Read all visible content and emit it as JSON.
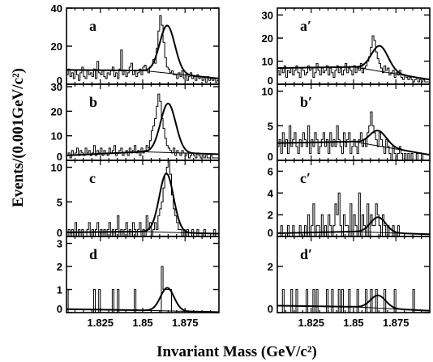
{
  "figure": {
    "ylabel": "Events/(0.001GeV/c²)",
    "xlabel": "Invariant Mass (GeV/c²)"
  },
  "chart_data": [
    {
      "type": "histogram",
      "label": "a",
      "xlim": [
        1.805,
        1.895
      ],
      "ylim": [
        0,
        40
      ],
      "yticks": [
        0,
        20,
        40
      ],
      "xticks": [
        1.825,
        1.85,
        1.875
      ],
      "bins_start": 1.805,
      "bin_width": 0.001,
      "values": [
        5,
        8,
        4,
        6,
        3,
        7,
        5,
        2,
        6,
        9,
        4,
        3,
        7,
        5,
        6,
        4,
        8,
        3,
        12,
        6,
        5,
        7,
        4,
        3,
        6,
        5,
        7,
        9,
        4,
        6,
        3,
        8,
        18,
        5,
        7,
        4,
        6,
        9,
        11,
        5,
        7,
        4,
        6,
        8,
        5,
        9,
        10,
        7,
        6,
        9,
        10,
        13,
        11,
        19,
        28,
        36,
        31,
        22,
        14,
        9,
        8,
        6,
        7,
        5,
        5,
        3,
        6,
        4,
        7,
        3,
        5,
        2,
        4,
        6,
        3,
        4,
        2,
        5,
        3,
        4,
        2,
        3,
        1,
        4,
        2,
        3,
        2,
        3,
        1,
        2
      ],
      "fit": {
        "bg_start": 7.5,
        "bg_mid": 7.2,
        "bg_end": 3.0,
        "peak": 1.8645,
        "sigma": 0.0045,
        "amp": 25
      }
    },
    {
      "type": "histogram",
      "label": "a′",
      "xlim": [
        1.805,
        1.895
      ],
      "ylim": [
        0,
        33
      ],
      "yticks": [
        0,
        10,
        20,
        30
      ],
      "xticks": [
        1.825,
        1.85,
        1.875
      ],
      "bins_start": 1.805,
      "bin_width": 0.001,
      "values": [
        6,
        4,
        7,
        5,
        8,
        3,
        6,
        5,
        7,
        4,
        6,
        8,
        5,
        3,
        7,
        6,
        4,
        5,
        8,
        6,
        7,
        3,
        5,
        9,
        6,
        4,
        7,
        5,
        6,
        8,
        4,
        7,
        5,
        3,
        6,
        8,
        5,
        7,
        4,
        6,
        9,
        5,
        7,
        6,
        4,
        8,
        5,
        7,
        6,
        9,
        5,
        7,
        8,
        10,
        12,
        16,
        21,
        19,
        14,
        11,
        9,
        7,
        5,
        8,
        6,
        7,
        4,
        5,
        6,
        3,
        5,
        4,
        6,
        3,
        2,
        4,
        3,
        2,
        3,
        2,
        1,
        2,
        3,
        1,
        2,
        1,
        2,
        1,
        1,
        1
      ],
      "fit": {
        "bg_start": 7.0,
        "bg_mid": 7.5,
        "bg_end": 2.0,
        "peak": 1.8655,
        "sigma": 0.005,
        "amp": 11
      }
    },
    {
      "type": "histogram",
      "label": "b",
      "xlim": [
        1.805,
        1.895
      ],
      "ylim": [
        0,
        31
      ],
      "yticks": [
        0,
        10,
        20,
        30
      ],
      "xticks": [
        1.825,
        1.85,
        1.875
      ],
      "bins_start": 1.805,
      "bin_width": 0.001,
      "values": [
        2,
        3,
        1,
        4,
        2,
        3,
        5,
        2,
        4,
        3,
        2,
        5,
        3,
        4,
        2,
        3,
        6,
        2,
        4,
        3,
        5,
        2,
        4,
        3,
        2,
        5,
        3,
        4,
        6,
        2,
        3,
        4,
        5,
        2,
        3,
        4,
        2,
        5,
        3,
        4,
        6,
        3,
        4,
        2,
        5,
        3,
        4,
        6,
        5,
        8,
        12,
        14,
        17,
        22,
        27,
        24,
        17,
        13,
        9,
        6,
        5,
        4,
        3,
        5,
        2,
        4,
        3,
        2,
        4,
        3,
        2,
        3,
        1,
        2,
        3,
        2,
        1,
        3,
        2,
        1,
        2,
        1,
        2,
        1,
        1,
        2,
        1,
        1,
        1,
        1
      ],
      "fit": {
        "bg_start": 2.0,
        "bg_mid": 3.5,
        "bg_end": 2.5,
        "peak": 1.865,
        "sigma": 0.0045,
        "amp": 20
      }
    },
    {
      "type": "histogram",
      "label": "b′",
      "xlim": [
        1.805,
        1.895
      ],
      "ylim": [
        0,
        11
      ],
      "yticks": [
        0,
        5,
        10
      ],
      "xticks": [
        1.825,
        1.85,
        1.875
      ],
      "bins_start": 1.805,
      "bin_width": 0.001,
      "values": [
        2,
        3,
        1,
        4,
        2,
        3,
        1,
        5,
        2,
        3,
        4,
        2,
        1,
        3,
        2,
        4,
        3,
        2,
        5,
        1,
        3,
        2,
        4,
        3,
        1,
        2,
        3,
        4,
        2,
        3,
        1,
        4,
        2,
        3,
        2,
        5,
        3,
        2,
        1,
        4,
        2,
        3,
        4,
        1,
        2,
        3,
        2,
        1,
        3,
        4,
        2,
        3,
        2,
        4,
        5,
        7,
        5,
        4,
        3,
        2,
        4,
        3,
        2,
        1,
        3,
        2,
        1,
        0,
        2,
        1,
        0,
        1,
        2,
        1,
        0,
        1,
        0,
        1,
        0,
        1,
        0,
        0,
        1,
        0,
        0,
        1,
        0,
        0,
        0,
        0
      ],
      "fit": {
        "bg_start": 2.5,
        "bg_mid": 2.7,
        "bg_end": 0.8,
        "peak": 1.8645,
        "sigma": 0.005,
        "amp": 2.2
      }
    },
    {
      "type": "histogram",
      "label": "c",
      "xlim": [
        1.805,
        1.895
      ],
      "ylim": [
        0,
        11
      ],
      "yticks": [
        0,
        5,
        10
      ],
      "xticks": [
        1.825,
        1.85,
        1.875
      ],
      "bins_start": 1.805,
      "bin_width": 0.001,
      "values": [
        0,
        1,
        0,
        1,
        0,
        2,
        0,
        1,
        0,
        1,
        0,
        0,
        1,
        2,
        0,
        1,
        0,
        1,
        2,
        0,
        1,
        0,
        1,
        0,
        1,
        2,
        0,
        1,
        0,
        1,
        3,
        0,
        1,
        0,
        1,
        2,
        0,
        1,
        0,
        2,
        1,
        0,
        1,
        2,
        0,
        1,
        0,
        3,
        1,
        2,
        0,
        1,
        2,
        1,
        3,
        4,
        5,
        7,
        9,
        10,
        11,
        9,
        6,
        4,
        3,
        2,
        1,
        1,
        0,
        1,
        0,
        1,
        0,
        0,
        1,
        0,
        0,
        1,
        0,
        0,
        0,
        1,
        0,
        0,
        0,
        0,
        0,
        1,
        0,
        0
      ],
      "fit": {
        "bg_start": 0.6,
        "bg_mid": 0.7,
        "bg_end": 0.4,
        "peak": 1.864,
        "sigma": 0.0042,
        "amp": 8.5
      }
    },
    {
      "type": "histogram",
      "label": "c′",
      "xlim": [
        1.805,
        1.895
      ],
      "ylim": [
        0,
        7
      ],
      "yticks": [
        0,
        2,
        4,
        6
      ],
      "xticks": [
        1.825,
        1.85,
        1.875
      ],
      "bins_start": 1.805,
      "bin_width": 0.001,
      "values": [
        0,
        0,
        1,
        0,
        0,
        0,
        1,
        0,
        0,
        1,
        0,
        0,
        0,
        1,
        0,
        0,
        1,
        0,
        2,
        0,
        1,
        3,
        0,
        1,
        1,
        0,
        2,
        0,
        1,
        0,
        2,
        1,
        0,
        1,
        3,
        2,
        4,
        1,
        0,
        2,
        1,
        1,
        0,
        3,
        0,
        2,
        1,
        0,
        4,
        0,
        2,
        1,
        0,
        3,
        0,
        2,
        1,
        1,
        3,
        2,
        1,
        0,
        2,
        1,
        0,
        1,
        0,
        0,
        1,
        0,
        0,
        1,
        0,
        0,
        0,
        0,
        0,
        0,
        0,
        0,
        0,
        0,
        0,
        0,
        0,
        0,
        0,
        0,
        0,
        0
      ],
      "fit": {
        "bg_start": 0.3,
        "bg_mid": 0.45,
        "bg_end": 0.2,
        "peak": 1.8645,
        "sigma": 0.0045,
        "amp": 1.4
      }
    },
    {
      "type": "histogram",
      "label": "d",
      "xlim": [
        1.805,
        1.895
      ],
      "ylim": [
        0,
        3.3
      ],
      "yticks": [
        0,
        1,
        2,
        3
      ],
      "xticks": [
        1.825,
        1.85,
        1.875
      ],
      "bins_start": 1.805,
      "bin_width": 0.001,
      "values": [
        1,
        0,
        0,
        0,
        0,
        0,
        0,
        0,
        0,
        0,
        0,
        0,
        0,
        0,
        0,
        0,
        1,
        0,
        0,
        1,
        0,
        0,
        0,
        0,
        0,
        0,
        0,
        1,
        0,
        0,
        1,
        0,
        0,
        0,
        0,
        0,
        0,
        0,
        0,
        0,
        1,
        0,
        0,
        0,
        0,
        0,
        0,
        0,
        0,
        0,
        0,
        0,
        0,
        0,
        0,
        0,
        2,
        1,
        1,
        1,
        1,
        1,
        0,
        0,
        0,
        0,
        0,
        0,
        0,
        0,
        0,
        0,
        0,
        0,
        0,
        0,
        0,
        0,
        0,
        0,
        0,
        0,
        0,
        0,
        0,
        0,
        0,
        0,
        0,
        0
      ],
      "fit": {
        "bg_start": 0.15,
        "bg_mid": 0.1,
        "bg_end": 0.02,
        "peak": 1.8645,
        "sigma": 0.004,
        "amp": 1.0
      }
    },
    {
      "type": "histogram",
      "label": "d′",
      "xlim": [
        1.805,
        1.895
      ],
      "ylim": [
        0,
        3.3
      ],
      "yticks": [
        0,
        2
      ],
      "xticks": [
        1.825,
        1.85,
        1.875
      ],
      "bins_start": 1.805,
      "bin_width": 0.001,
      "values": [
        0,
        0,
        0,
        1,
        0,
        0,
        0,
        0,
        1,
        0,
        0,
        1,
        0,
        0,
        0,
        0,
        0,
        1,
        0,
        0,
        0,
        1,
        0,
        1,
        0,
        0,
        0,
        0,
        0,
        1,
        0,
        0,
        1,
        0,
        0,
        0,
        1,
        0,
        1,
        0,
        0,
        0,
        1,
        0,
        0,
        0,
        0,
        1,
        0,
        0,
        0,
        0,
        1,
        0,
        0,
        1,
        0,
        0,
        1,
        0,
        0,
        0,
        0,
        1,
        0,
        0,
        0,
        0,
        0,
        1,
        0,
        0,
        0,
        0,
        0,
        0,
        0,
        0,
        0,
        0,
        1,
        0,
        0,
        0,
        0,
        0,
        0,
        0,
        0,
        0
      ],
      "fit": {
        "bg_start": 0.3,
        "bg_mid": 0.25,
        "bg_end": 0.08,
        "peak": 1.8645,
        "sigma": 0.0045,
        "amp": 0.55
      }
    }
  ]
}
